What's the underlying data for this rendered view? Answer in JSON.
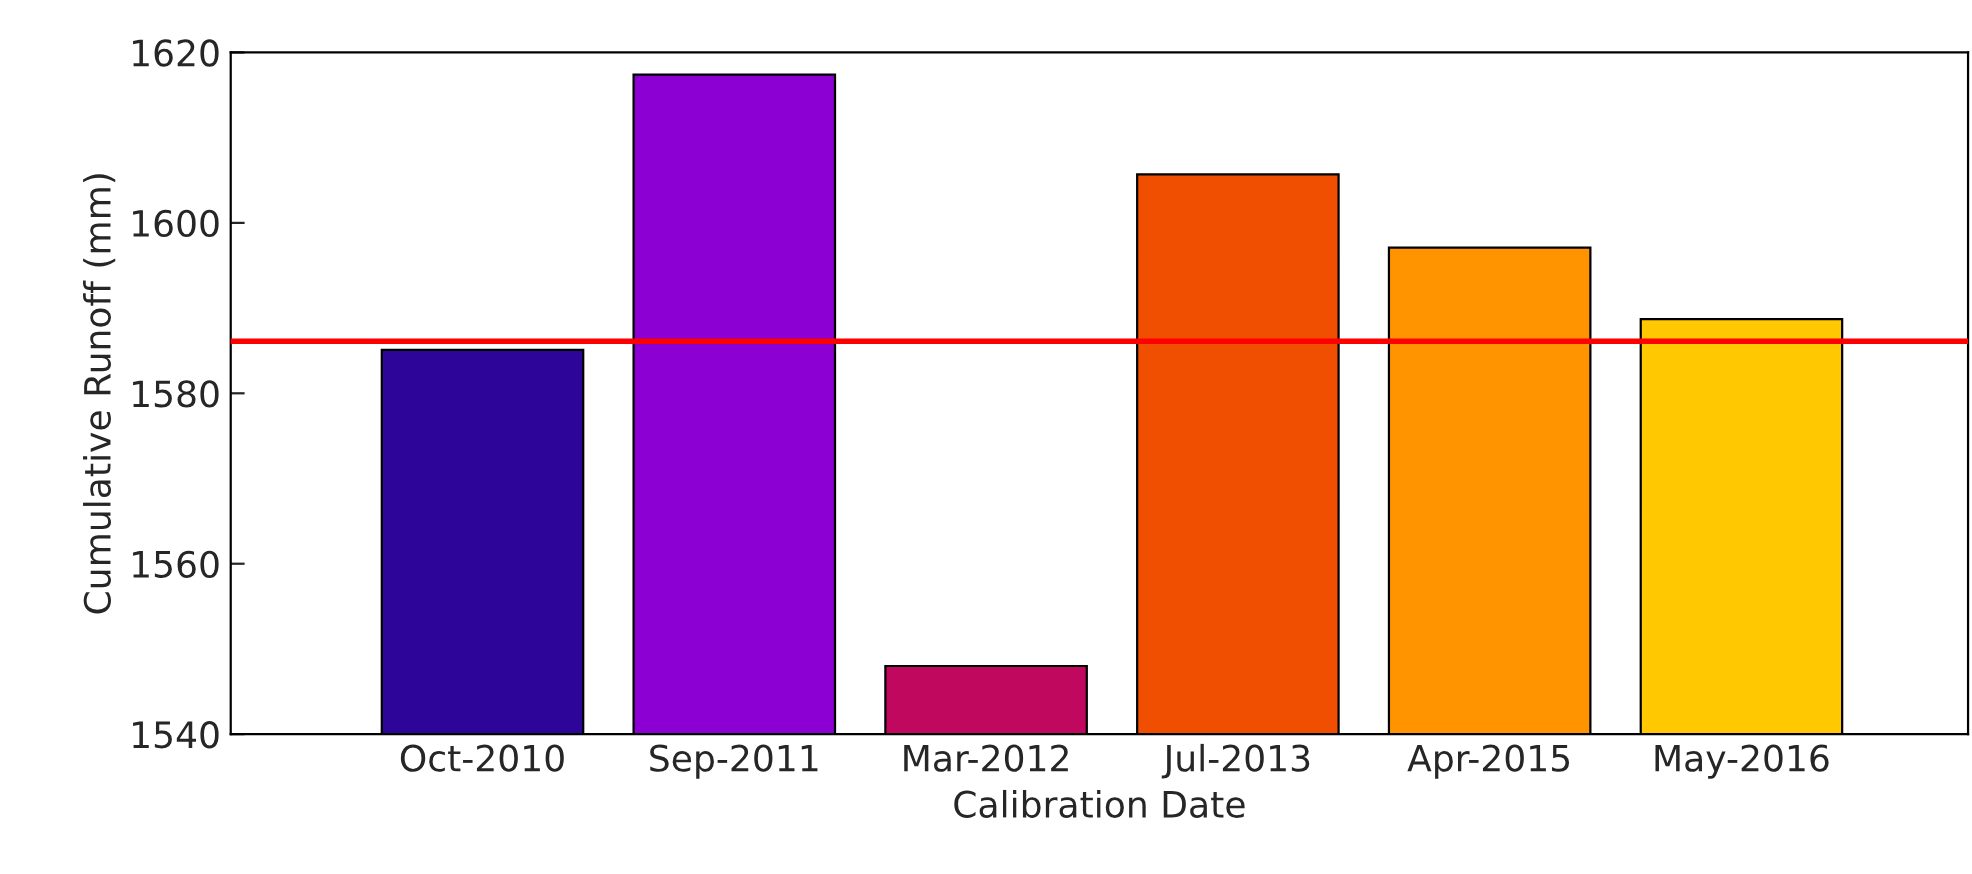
{
  "chart_data": {
    "type": "bar",
    "xlabel": "Calibration Date",
    "ylabel": "Cumulative Runoff (mm)",
    "categories": [
      "Oct-2010",
      "Sep-2011",
      "Mar-2012",
      "Jul-2013",
      "Apr-2015",
      "May-2016"
    ],
    "values": [
      1585.1,
      1617.4,
      1548.0,
      1605.7,
      1597.1,
      1588.7
    ],
    "colors": [
      "#2e0599",
      "#8c00d4",
      "#c0085e",
      "#f04e00",
      "#ff9400",
      "#ffc800"
    ],
    "ylim": [
      1540,
      1620
    ],
    "yticks": [
      1540,
      1560,
      1580,
      1600,
      1620
    ],
    "grid": false,
    "ref_lines": [
      {
        "axis": "y",
        "value": 1586.1,
        "color": "#ff0000"
      }
    ]
  }
}
